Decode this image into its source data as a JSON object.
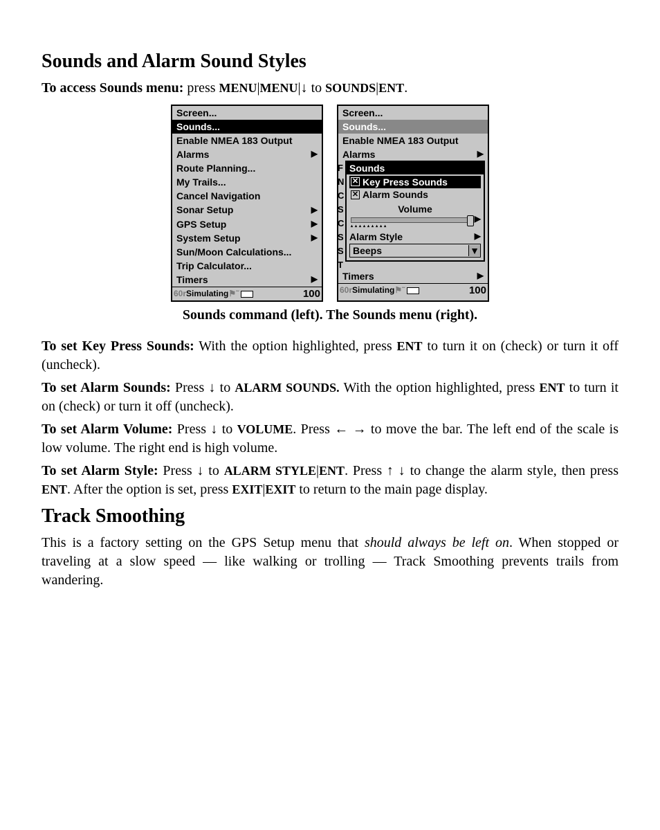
{
  "headings": {
    "h1a": "Sounds and Alarm Sound Styles",
    "h1b": "Track Smoothing"
  },
  "access_line": {
    "lead": "To access Sounds menu:",
    "text1": " press ",
    "menu1": "MENU",
    "bar1": "|",
    "menu2": "MENU",
    "bar2": "|",
    "arrow": "↓",
    "to": " to ",
    "sounds": "SOUNDS",
    "bar3": "|",
    "ent": "ENT"
  },
  "lcd_left": {
    "items": [
      "Screen...",
      "Sounds...",
      "Enable NMEA 183 Output",
      "Alarms",
      "Route Planning...",
      "My Trails...",
      "Cancel Navigation",
      "Sonar Setup",
      "GPS Setup",
      "System Setup",
      "Sun/Moon Calculations...",
      "Trip Calculator...",
      "Timers"
    ],
    "arrows": [
      false,
      false,
      false,
      true,
      false,
      false,
      false,
      true,
      true,
      true,
      false,
      false,
      true
    ],
    "selected_index": 1,
    "status_pre": "60r",
    "status_mid": "Simulating",
    "status_num": "100"
  },
  "lcd_right": {
    "top_items": [
      "Screen...",
      "Sounds...",
      "Enable NMEA 183 Output",
      "Alarms"
    ],
    "top_sel_index": 1,
    "popup": {
      "title": "Sounds",
      "opt1": "Key Press Sounds",
      "opt2": "Alarm Sounds",
      "volume_label": "Volume",
      "alarm_style_label": "Alarm Style",
      "select_value": "Beeps"
    },
    "cut_letters": [
      "F",
      "N",
      "C",
      "S",
      "C",
      "S",
      "S",
      "T"
    ],
    "timers_label": "Timers",
    "status_pre": "60r",
    "status_mid": "Simulating",
    "status_num": "100"
  },
  "caption": "Sounds command (left). The Sounds menu (right).",
  "paragraphs": {
    "kps_lead": "To set Key Press Sounds:",
    "kps_body1": " With the option highlighted, press ",
    "kps_ent": "ENT",
    "kps_body2": " to turn it on (check) or turn it off (uncheck).",
    "as_lead": "To set Alarm Sounds:",
    "as_b1": " Press ↓ to ",
    "as_target": "ALARM SOUNDS.",
    "as_b2": " With the option high­lighted, press ",
    "as_ent": "ENT",
    "as_b3": " to turn it on (check) or turn it off (uncheck).",
    "av_lead": "To set Alarm Volume:",
    "av_b1": " Press ↓ to ",
    "av_target": "VOLUME",
    "av_b2": ". Press ← → to move the bar. The left end of the scale is low volume. The right end is high volume.",
    "ast_lead": "To set Alarm Style:",
    "ast_b1": " Press ↓ to ",
    "ast_t1": "ALARM STYLE",
    "ast_bar1": "|",
    "ast_ent1": "ENT",
    "ast_b2": ". Press ↑ ↓ to change the alarm style, then press ",
    "ast_ent2": "ENT",
    "ast_b3": ". After the option is set, press ",
    "ast_exit": "EXIT",
    "ast_bar2": "|",
    "ast_exit2": "EXIT",
    "ast_b4": " to return to the main page display.",
    "track_body1": "This is a factory setting on the GPS Setup menu that ",
    "track_em": "should always be left on",
    "track_body2": ". When stopped or traveling at a slow speed — like walking or trolling — Track Smoothing prevents trails from wandering."
  }
}
